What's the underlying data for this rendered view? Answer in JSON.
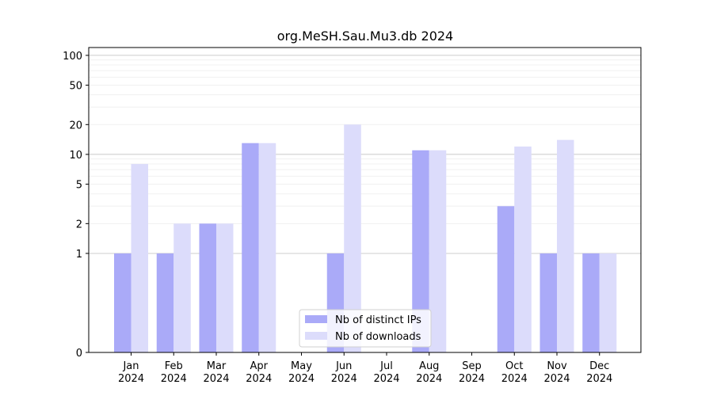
{
  "chart_data": {
    "type": "bar",
    "title": "org.MeSH.Sau.Mu3.db 2024",
    "xlabel": "",
    "ylabel": "",
    "y_scale": "symlog",
    "y_ticks": [
      0,
      1,
      2,
      5,
      10,
      20,
      50,
      100
    ],
    "y_tick_labels": [
      "0",
      "1",
      "2",
      "5",
      "10",
      "20",
      "50",
      "100"
    ],
    "ylim": [
      0,
      120
    ],
    "categories": [
      [
        "Jan",
        "2024"
      ],
      [
        "Feb",
        "2024"
      ],
      [
        "Mar",
        "2024"
      ],
      [
        "Apr",
        "2024"
      ],
      [
        "May",
        "2024"
      ],
      [
        "Jun",
        "2024"
      ],
      [
        "Jul",
        "2024"
      ],
      [
        "Aug",
        "2024"
      ],
      [
        "Sep",
        "2024"
      ],
      [
        "Oct",
        "2024"
      ],
      [
        "Nov",
        "2024"
      ],
      [
        "Dec",
        "2024"
      ]
    ],
    "series": [
      {
        "name": "Nb of distinct IPs",
        "color": "#aaaaf8",
        "values": [
          1,
          1,
          2,
          13,
          0,
          1,
          0,
          11,
          0,
          3,
          1,
          1
        ]
      },
      {
        "name": "Nb of downloads",
        "color": "#dcdcfb",
        "values": [
          8,
          2,
          2,
          13,
          0,
          20,
          0,
          11,
          0,
          12,
          14,
          1
        ]
      }
    ],
    "grid": true,
    "legend_position": "lower-center"
  }
}
